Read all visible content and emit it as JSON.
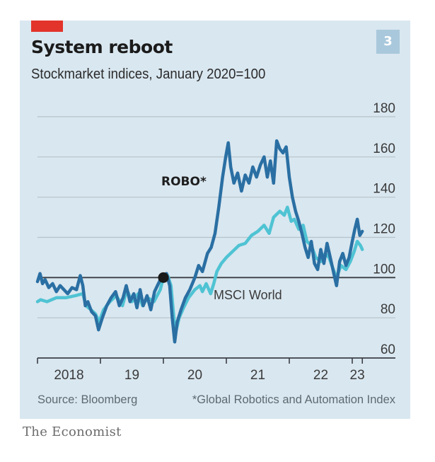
{
  "header": {
    "title": "System reboot",
    "subtitle": "Stockmarket indices, January 2020=100",
    "badge": "3",
    "accent_color": "#e3342b"
  },
  "footer": {
    "source": "Source: Bloomberg",
    "footnote": "*Global Robotics and Automation Index",
    "brand": "The Economist"
  },
  "chart_data": {
    "type": "line",
    "title": "System reboot",
    "subtitle": "Stockmarket indices, January 2020=100",
    "xlabel": "",
    "ylabel": "",
    "xlim": [
      2018.0,
      2023.2
    ],
    "ylim": [
      60,
      180
    ],
    "y_ticks": [
      60,
      80,
      100,
      120,
      140,
      160,
      180
    ],
    "y_tick_labels": [
      "60",
      "80",
      "100",
      "120",
      "140",
      "160",
      "180"
    ],
    "x_ticks": [
      2018.0,
      2019.0,
      2020.0,
      2021.0,
      2022.0,
      2023.0,
      2023.16
    ],
    "x_tick_labels": [
      {
        "label": "2018",
        "at": 2018.5
      },
      {
        "label": "19",
        "at": 2019.5
      },
      {
        "label": "20",
        "at": 2020.5
      },
      {
        "label": "21",
        "at": 2021.5
      },
      {
        "label": "22",
        "at": 2022.5
      },
      {
        "label": "23",
        "at": 2023.08
      }
    ],
    "grid": true,
    "baseline": 100,
    "marker": {
      "x": 2020.0,
      "y": 100,
      "note": "January 2020 = 100"
    },
    "series": [
      {
        "name": "MSCI World",
        "label": "MSCI World",
        "color": "#4fc3d3",
        "x": [
          2018.0,
          2018.05,
          2018.15,
          2018.3,
          2018.45,
          2018.6,
          2018.72,
          2018.77,
          2018.85,
          2018.92,
          2018.98,
          2019.05,
          2019.15,
          2019.25,
          2019.35,
          2019.42,
          2019.5,
          2019.6,
          2019.67,
          2019.75,
          2019.85,
          2019.95,
          2020.0,
          2020.07,
          2020.12,
          2020.19,
          2020.25,
          2020.32,
          2020.4,
          2020.5,
          2020.58,
          2020.62,
          2020.68,
          2020.75,
          2020.8,
          2020.85,
          2020.92,
          2021.0,
          2021.1,
          2021.2,
          2021.3,
          2021.4,
          2021.5,
          2021.6,
          2021.68,
          2021.75,
          2021.85,
          2021.92,
          2021.97,
          2022.03,
          2022.08,
          2022.15,
          2022.22,
          2022.28,
          2022.35,
          2022.42,
          2022.5,
          2022.57,
          2022.63,
          2022.7,
          2022.75,
          2022.82,
          2022.9,
          2022.97,
          2023.03,
          2023.08,
          2023.13,
          2023.16
        ],
        "values": [
          88,
          89,
          88,
          90,
          90,
          91,
          92,
          86,
          84,
          82,
          78,
          84,
          88,
          91,
          86,
          94,
          88,
          92,
          86,
          90,
          88,
          94,
          100,
          101,
          96,
          72,
          80,
          85,
          90,
          94,
          96,
          93,
          97,
          92,
          97,
          103,
          107,
          110,
          113,
          116,
          117,
          121,
          123,
          126,
          122,
          130,
          133,
          131,
          135,
          128,
          129,
          124,
          126,
          118,
          116,
          110,
          108,
          112,
          110,
          104,
          100,
          106,
          104,
          108,
          113,
          118,
          116,
          114
        ]
      },
      {
        "name": "ROBO*",
        "label": "ROBO*",
        "color": "#2a6fa3",
        "x": [
          2018.0,
          2018.04,
          2018.08,
          2018.12,
          2018.18,
          2018.24,
          2018.3,
          2018.36,
          2018.42,
          2018.48,
          2018.55,
          2018.62,
          2018.68,
          2018.72,
          2018.76,
          2018.8,
          2018.86,
          2018.92,
          2018.97,
          2019.03,
          2019.1,
          2019.17,
          2019.24,
          2019.3,
          2019.36,
          2019.41,
          2019.47,
          2019.53,
          2019.58,
          2019.63,
          2019.68,
          2019.74,
          2019.8,
          2019.86,
          2019.92,
          2019.97,
          2020.0,
          2020.05,
          2020.1,
          2020.14,
          2020.18,
          2020.22,
          2020.28,
          2020.35,
          2020.42,
          2020.5,
          2020.56,
          2020.62,
          2020.7,
          2020.76,
          2020.82,
          2020.88,
          2020.94,
          2020.99,
          2021.03,
          2021.07,
          2021.12,
          2021.18,
          2021.24,
          2021.3,
          2021.36,
          2021.42,
          2021.48,
          2021.54,
          2021.6,
          2021.65,
          2021.7,
          2021.75,
          2021.8,
          2021.85,
          2021.9,
          2021.95,
          2022.0,
          2022.05,
          2022.1,
          2022.15,
          2022.2,
          2022.25,
          2022.3,
          2022.35,
          2022.4,
          2022.45,
          2022.5,
          2022.55,
          2022.6,
          2022.65,
          2022.7,
          2022.75,
          2022.8,
          2022.85,
          2022.9,
          2022.95,
          2023.0,
          2023.04,
          2023.08,
          2023.12,
          2023.16
        ],
        "values": [
          98,
          102,
          97,
          99,
          95,
          97,
          93,
          96,
          94,
          92,
          95,
          94,
          101,
          96,
          86,
          88,
          83,
          81,
          74,
          80,
          86,
          90,
          93,
          86,
          90,
          96,
          88,
          92,
          85,
          94,
          86,
          91,
          84,
          93,
          97,
          100,
          100,
          102,
          96,
          80,
          68,
          78,
          84,
          90,
          94,
          100,
          106,
          103,
          112,
          115,
          122,
          135,
          150,
          160,
          167,
          155,
          147,
          152,
          143,
          151,
          147,
          155,
          150,
          156,
          160,
          150,
          158,
          147,
          168,
          164,
          162,
          165,
          150,
          140,
          133,
          128,
          122,
          115,
          110,
          118,
          107,
          104,
          114,
          107,
          117,
          110,
          103,
          96,
          108,
          112,
          106,
          110,
          118,
          124,
          129,
          121,
          123
        ]
      }
    ]
  }
}
